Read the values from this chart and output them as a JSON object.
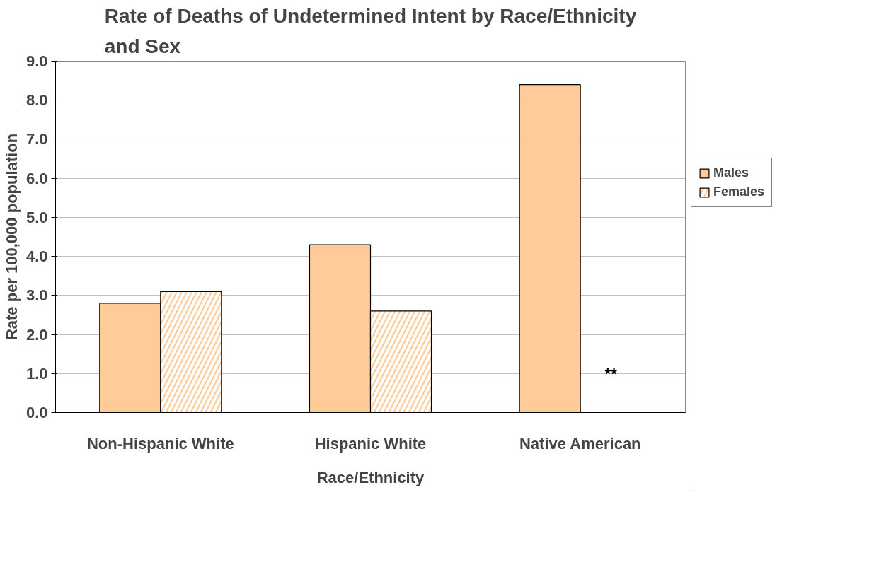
{
  "chart_data": {
    "type": "bar",
    "title": "Rate of Deaths of Undetermined Intent by Race/Ethnicity and Sex",
    "xlabel": "Race/Ethnicity",
    "ylabel": "Rate per 100,000 population",
    "categories": [
      "Non-Hispanic White",
      "Hispanic White",
      "Native American"
    ],
    "series": [
      {
        "name": "Males",
        "color": "#ffcc99",
        "values": [
          2.8,
          4.3,
          8.4
        ]
      },
      {
        "name": "Females",
        "color": "#ffcc99",
        "values": [
          3.1,
          2.6,
          null
        ]
      }
    ],
    "annotations": [
      {
        "text": "**",
        "x": "Native American",
        "y": 1.0
      }
    ],
    "ylim": [
      0,
      9
    ],
    "yticks": [
      {
        "value": 0,
        "label": "0.0"
      },
      {
        "value": 1,
        "label": "1.0"
      },
      {
        "value": 2,
        "label": "2.0"
      },
      {
        "value": 3,
        "label": "3.0"
      },
      {
        "value": 4,
        "label": "4.0"
      },
      {
        "value": 5,
        "label": "5.0"
      },
      {
        "value": 6,
        "label": "6.0"
      },
      {
        "value": 7,
        "label": "7.0"
      },
      {
        "value": 8,
        "label": "8.0"
      },
      {
        "value": 9,
        "label": "9.0"
      }
    ],
    "grid": "y",
    "legend": "right"
  }
}
